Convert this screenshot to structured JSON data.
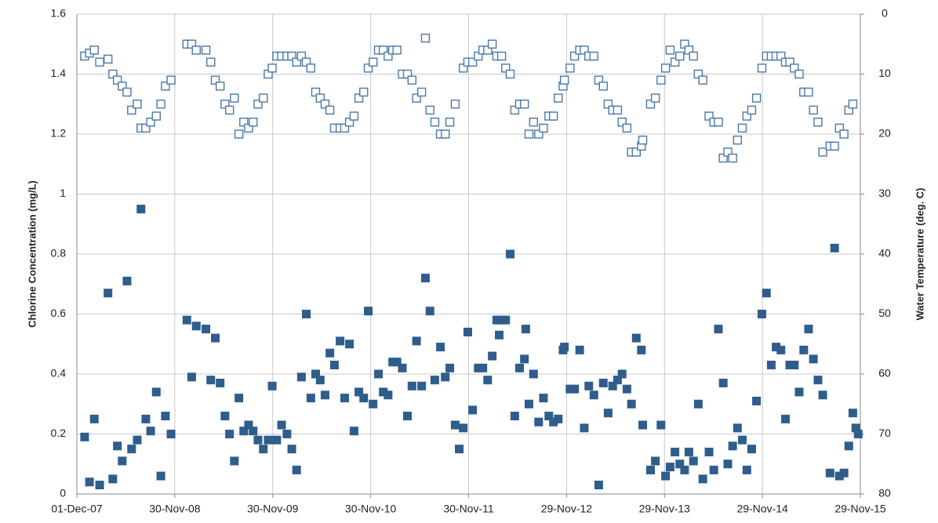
{
  "chart_data": {
    "type": "scatter",
    "y_label": "Chlorine Concentration (mg/L)",
    "y2_label": "Water Temperature (deg. C)",
    "xlim": [
      "2007-12-01",
      "2015-11-29"
    ],
    "xticks": [
      {
        "value": "2007-12-01",
        "label": "01-Dec-07"
      },
      {
        "value": "2008-11-30",
        "label": "30-Nov-08"
      },
      {
        "value": "2009-11-30",
        "label": "30-Nov-09"
      },
      {
        "value": "2010-11-30",
        "label": "30-Nov-10"
      },
      {
        "value": "2011-11-30",
        "label": "30-Nov-11"
      },
      {
        "value": "2012-11-29",
        "label": "29-Nov-12"
      },
      {
        "value": "2013-11-29",
        "label": "29-Nov-13"
      },
      {
        "value": "2014-11-29",
        "label": "29-Nov-14"
      },
      {
        "value": "2015-11-29",
        "label": "29-Nov-15"
      }
    ],
    "ylim": [
      0,
      1.6
    ],
    "yticks": [
      0,
      0.2,
      0.4,
      0.6,
      0.8,
      1,
      1.2,
      1.4,
      1.6
    ],
    "y2lim": [
      80,
      0
    ],
    "y2ticks": [
      0,
      10,
      20,
      30,
      40,
      50,
      60,
      70,
      80
    ],
    "grid": true,
    "x": [
      "2007-12-30",
      "2008-01-17",
      "2008-02-04",
      "2008-02-24",
      "2008-03-26",
      "2008-04-13",
      "2008-04-30",
      "2008-05-18",
      "2008-06-05",
      "2008-06-22",
      "2008-07-13",
      "2008-07-27",
      "2008-08-14",
      "2008-09-01",
      "2008-09-22",
      "2008-10-09",
      "2008-10-26",
      "2008-11-16",
      "2009-01-14",
      "2009-02-01",
      "2009-02-18",
      "2009-03-26",
      "2009-04-13",
      "2009-04-30",
      "2009-05-18",
      "2009-06-05",
      "2009-06-22",
      "2009-07-10",
      "2009-07-27",
      "2009-08-14",
      "2009-09-01",
      "2009-09-18",
      "2009-10-06",
      "2009-10-26",
      "2009-11-13",
      "2009-11-28",
      "2009-12-15",
      "2010-01-02",
      "2010-01-22",
      "2010-02-09",
      "2010-02-27",
      "2010-03-17",
      "2010-04-04",
      "2010-04-21",
      "2010-05-09",
      "2010-05-26",
      "2010-06-13",
      "2010-07-01",
      "2010-07-18",
      "2010-08-08",
      "2010-08-25",
      "2010-09-12",
      "2010-09-29",
      "2010-10-17",
      "2010-11-04",
      "2010-11-21",
      "2010-12-09",
      "2010-12-29",
      "2011-01-16",
      "2011-02-03",
      "2011-02-20",
      "2011-03-08",
      "2011-03-28",
      "2011-04-16",
      "2011-05-03",
      "2011-05-20",
      "2011-06-08",
      "2011-06-22",
      "2011-07-09",
      "2011-07-27",
      "2011-08-17",
      "2011-09-04",
      "2011-09-21",
      "2011-10-11",
      "2011-10-26",
      "2011-11-10",
      "2011-11-27",
      "2011-12-15",
      "2012-01-05",
      "2012-01-22",
      "2012-02-09",
      "2012-02-26",
      "2012-03-14",
      "2012-03-23",
      "2012-04-01",
      "2012-04-16",
      "2012-05-03",
      "2012-05-20",
      "2012-06-07",
      "2012-06-25",
      "2012-06-30",
      "2012-07-12",
      "2012-07-29",
      "2012-08-17",
      "2012-09-04",
      "2012-09-24",
      "2012-10-11",
      "2012-10-29",
      "2012-11-16",
      "2012-11-21",
      "2012-12-12",
      "2012-12-29",
      "2013-01-17",
      "2013-02-03",
      "2013-02-20",
      "2013-03-11",
      "2013-03-29",
      "2013-04-15",
      "2013-05-03",
      "2013-05-20",
      "2013-06-07",
      "2013-06-24",
      "2013-07-12",
      "2013-07-29",
      "2013-08-16",
      "2013-09-04",
      "2013-09-09",
      "2013-10-08",
      "2013-10-26",
      "2013-11-16",
      "2013-12-03",
      "2013-12-20",
      "2014-01-07",
      "2014-01-25",
      "2014-02-12",
      "2014-02-28",
      "2014-03-17",
      "2014-04-04",
      "2014-04-21",
      "2014-05-14",
      "2014-06-01",
      "2014-06-18",
      "2014-07-06",
      "2014-07-23",
      "2014-08-10",
      "2014-08-28",
      "2014-09-15",
      "2014-10-02",
      "2014-10-20",
      "2014-11-07",
      "2014-11-27",
      "2014-12-14",
      "2015-01-01",
      "2015-01-19",
      "2015-02-06",
      "2015-02-23",
      "2015-03-11",
      "2015-03-28",
      "2015-04-15",
      "2015-05-02",
      "2015-05-20",
      "2015-06-07",
      "2015-06-24",
      "2015-07-12",
      "2015-08-08",
      "2015-08-25",
      "2015-09-12",
      "2015-09-29",
      "2015-10-17",
      "2015-11-01",
      "2015-11-12",
      "2015-11-21"
    ],
    "series": [
      {
        "color": "#2f5d8c",
        "filled": true,
        "axis": "y",
        "values": [
          0.19,
          0.04,
          0.25,
          0.03,
          0.67,
          0.05,
          0.16,
          0.11,
          0.71,
          0.15,
          0.18,
          0.95,
          0.25,
          0.21,
          0.34,
          0.06,
          0.26,
          0.2,
          0.58,
          0.39,
          0.56,
          0.55,
          0.38,
          0.52,
          0.37,
          0.26,
          0.2,
          0.11,
          0.32,
          0.21,
          0.23,
          0.21,
          0.18,
          0.15,
          0.18,
          0.36,
          0.18,
          0.23,
          0.2,
          0.15,
          0.08,
          0.39,
          0.6,
          0.32,
          0.4,
          0.38,
          0.33,
          0.47,
          0.43,
          0.51,
          0.32,
          0.5,
          0.21,
          0.34,
          0.32,
          0.61,
          0.3,
          0.4,
          0.34,
          0.33,
          0.44,
          0.44,
          0.42,
          0.26,
          0.36,
          0.51,
          0.36,
          0.72,
          0.61,
          0.38,
          0.49,
          0.39,
          0.42,
          0.23,
          0.15,
          0.22,
          0.54,
          0.28,
          0.42,
          0.42,
          0.38,
          0.46,
          0.58,
          0.53,
          0.58,
          0.58,
          0.8,
          0.26,
          0.42,
          0.45,
          0.55,
          0.3,
          0.4,
          0.24,
          0.32,
          0.26,
          0.24,
          0.25,
          0.48,
          0.49,
          0.35,
          0.35,
          0.48,
          0.22,
          0.36,
          0.33,
          0.03,
          0.37,
          0.27,
          0.36,
          0.38,
          0.4,
          0.35,
          0.3,
          0.52,
          0.48,
          0.23,
          0.08,
          0.11,
          0.23,
          0.06,
          0.09,
          0.14,
          0.1,
          0.08,
          0.14,
          0.11,
          0.3,
          0.05,
          0.14,
          0.08,
          0.55,
          0.37,
          0.1,
          0.16,
          0.22,
          0.18,
          0.08,
          0.15,
          0.31,
          0.6,
          0.67,
          0.43,
          0.49,
          0.48,
          0.25,
          0.43,
          0.43,
          0.34,
          0.48,
          0.55,
          0.45,
          0.38,
          0.33,
          0.07,
          0.82,
          0.06,
          0.07,
          0.16,
          0.27,
          0.22,
          0.2
        ]
      },
      {
        "color": "#4a78a8",
        "filled": false,
        "axis": "y2",
        "values": [
          7,
          6.5,
          6,
          8,
          7.5,
          10,
          11,
          12,
          13,
          16,
          15,
          19,
          19,
          18,
          17,
          15,
          12,
          11,
          5,
          5,
          6,
          6,
          8,
          11,
          12,
          15,
          16,
          14,
          20,
          18,
          19,
          18,
          15,
          14,
          10,
          9,
          7,
          7,
          7,
          7,
          8,
          7,
          8,
          9,
          13,
          14,
          15,
          16,
          19,
          19,
          19,
          18,
          17,
          14,
          13,
          9,
          8,
          6,
          6,
          7,
          6,
          6,
          10,
          10,
          11,
          14,
          13,
          4,
          16,
          18,
          20,
          20,
          18,
          15,
          null,
          9,
          8,
          8,
          7,
          6,
          6,
          5,
          7,
          null,
          7,
          9,
          10,
          16,
          15,
          15,
          null,
          20,
          18,
          20,
          19,
          17,
          17,
          14,
          12,
          11,
          9,
          7,
          6,
          6,
          7,
          7,
          11,
          12,
          15,
          16,
          16,
          18,
          19,
          23,
          23,
          22,
          21,
          15,
          14,
          11,
          9,
          6,
          8,
          7,
          5,
          6,
          7,
          10,
          11,
          17,
          18,
          18,
          24,
          23,
          24,
          21,
          19,
          17,
          16,
          14,
          9,
          7,
          7,
          7,
          7,
          8,
          8,
          9,
          10,
          13,
          13,
          16,
          18,
          23,
          22,
          22,
          19,
          20,
          16,
          15,
          null,
          null
        ]
      }
    ]
  }
}
